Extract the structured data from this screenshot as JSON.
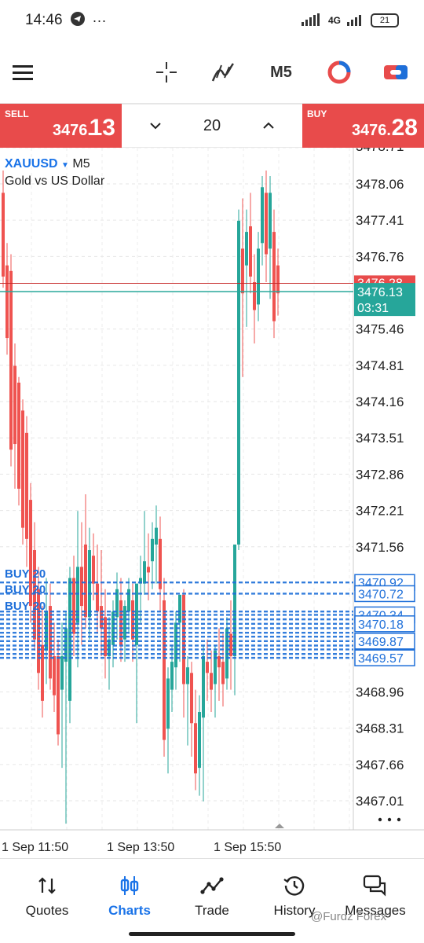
{
  "status_bar": {
    "time": "14:46",
    "network": "4G",
    "battery": "21"
  },
  "toolbar": {
    "timeframe": "M5"
  },
  "trade": {
    "sell_label": "SELL",
    "sell_price_small": "3476.",
    "sell_price_big": "13",
    "buy_label": "BUY",
    "buy_price_small": "3476.",
    "buy_price_big": "28",
    "volume": "20"
  },
  "chart": {
    "symbol": "XAUUSD",
    "timeframe": "M5",
    "description": "Gold vs US Dollar",
    "price_labels": [
      "3478.71",
      "3478.06",
      "3477.41",
      "3476.76",
      "3475.46",
      "3474.81",
      "3474.16",
      "3473.51",
      "3472.86",
      "3472.21",
      "3471.56",
      "3468.96",
      "3468.31",
      "3467.66",
      "3467.01"
    ],
    "ask_tag": "3476.28",
    "bid_tag": "3476.13",
    "countdown": "03:31",
    "order_tags": [
      "3470.92",
      "3470.72",
      "3470.34",
      "3470.18",
      "3469.87",
      "3469.57"
    ],
    "order_labels": [
      "BUY 20",
      "BUY 20",
      "BUY 20"
    ],
    "time_labels": [
      "1 Sep 11:50",
      "1 Sep 13:50",
      "1 Sep 15:50"
    ],
    "colors": {
      "bull": "#26a69a",
      "bear": "#ef5350",
      "orders": "#1e6fd9",
      "ask_line": "#c62828",
      "bid_line": "#26a69a"
    }
  },
  "nav": {
    "items": [
      {
        "label": "Quotes",
        "icon": "quotes-icon"
      },
      {
        "label": "Charts",
        "icon": "charts-icon"
      },
      {
        "label": "Trade",
        "icon": "trade-icon"
      },
      {
        "label": "History",
        "icon": "history-icon"
      },
      {
        "label": "Messages",
        "icon": "messages-icon"
      }
    ]
  },
  "watermark": "@Furdz Forex"
}
